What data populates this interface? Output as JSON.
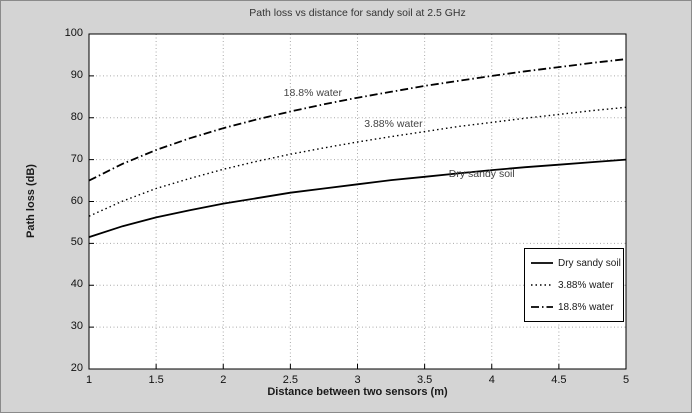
{
  "figure": {
    "bg": "#d4d4d4",
    "plot_bg": "#ffffff",
    "axis_color": "#000000",
    "grid_color": "#aaaaaa",
    "text_color": "#333333"
  },
  "chart_data": {
    "type": "line",
    "title": "Path loss vs distance for sandy soil at 2.5 GHz",
    "xlabel": "Distance between two sensors (m)",
    "ylabel": "Path loss (dB)",
    "xlim": [
      1,
      5
    ],
    "ylim": [
      20,
      100
    ],
    "xticks": [
      1,
      1.5,
      2,
      2.5,
      3,
      3.5,
      4,
      4.5,
      5
    ],
    "yticks": [
      20,
      30,
      40,
      50,
      60,
      70,
      80,
      90,
      100
    ],
    "grid": true,
    "legend_position": "lower right",
    "series": [
      {
        "name": "Dry sandy soil",
        "style": "solid",
        "color": "#000000",
        "width": 1.8,
        "x": [
          1,
          1.25,
          1.5,
          1.75,
          2,
          2.25,
          2.5,
          2.75,
          3,
          3.25,
          3.5,
          3.75,
          4,
          4.25,
          4.5,
          4.75,
          5
        ],
        "y": [
          51.5,
          54.1,
          56.2,
          57.9,
          59.5,
          60.8,
          62.1,
          63.1,
          64.1,
          65.1,
          65.9,
          66.7,
          67.5,
          68.2,
          68.8,
          69.4,
          70.0
        ]
      },
      {
        "name": "3.88% water",
        "style": "dotted",
        "color": "#000000",
        "width": 1.4,
        "x": [
          1,
          1.25,
          1.5,
          1.75,
          2,
          2.25,
          2.5,
          2.75,
          3,
          3.25,
          3.5,
          3.75,
          4,
          4.25,
          4.5,
          4.75,
          5
        ],
        "y": [
          56.5,
          60.1,
          63.1,
          65.5,
          67.7,
          69.6,
          71.3,
          72.8,
          74.2,
          75.5,
          76.7,
          77.9,
          78.9,
          79.9,
          80.8,
          81.7,
          82.5
        ]
      },
      {
        "name": "18.8% water",
        "style": "dashdot",
        "color": "#000000",
        "width": 1.8,
        "x": [
          1,
          1.25,
          1.5,
          1.75,
          2,
          2.25,
          2.5,
          2.75,
          3,
          3.25,
          3.5,
          3.75,
          4,
          4.25,
          4.5,
          4.75,
          5
        ],
        "y": [
          65.0,
          69.0,
          72.3,
          75.1,
          77.5,
          79.6,
          81.5,
          83.2,
          84.8,
          86.2,
          87.6,
          88.8,
          90.0,
          91.1,
          92.1,
          93.1,
          94.0
        ]
      }
    ],
    "annotations": [
      {
        "label": "18.8% water",
        "x": 2.45,
        "y": 84.8
      },
      {
        "label": "3.88% water",
        "x": 3.05,
        "y": 77.3
      },
      {
        "label": "Dry sandy soil",
        "x": 3.68,
        "y": 65.3
      }
    ]
  }
}
